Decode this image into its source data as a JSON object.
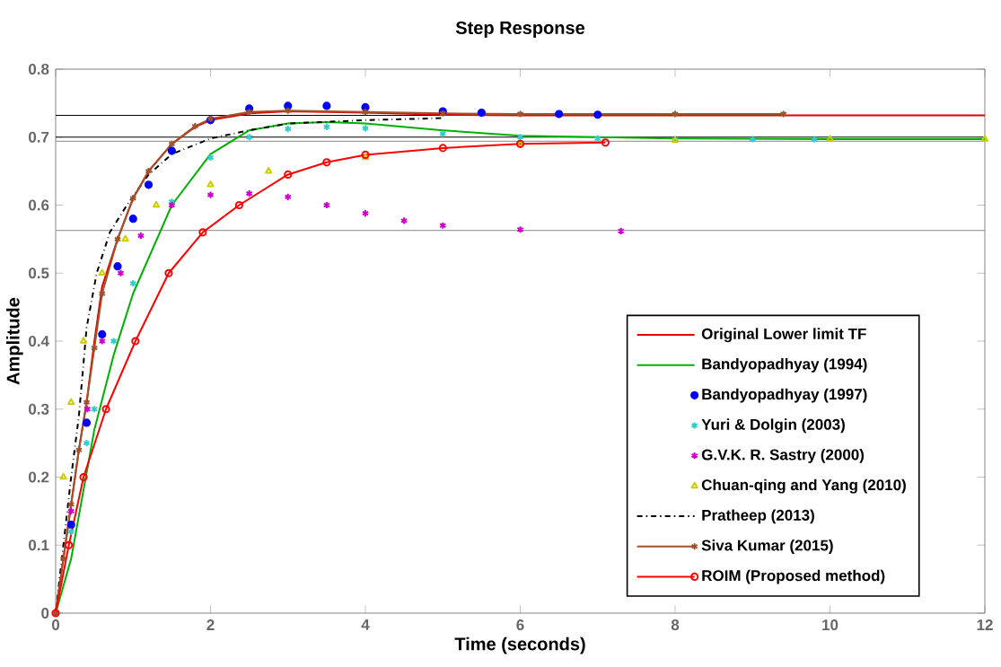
{
  "chart_data": {
    "type": "line",
    "title": "Step Response",
    "xlabel": "Time (seconds)",
    "ylabel": "Amplitude",
    "xlim": [
      0,
      12
    ],
    "xticks": [
      0,
      2,
      4,
      6,
      8,
      10,
      12
    ],
    "ylim": [
      0,
      0.8
    ],
    "yticks": [
      0,
      0.1,
      0.2,
      0.3,
      0.4,
      0.5,
      0.6,
      0.7,
      0.8
    ],
    "legend": "bottom right",
    "ref_lines": [
      {
        "axis": "y",
        "value": 0.732,
        "color": "#000000"
      },
      {
        "axis": "y",
        "value": 0.7,
        "color": "#000000"
      },
      {
        "axis": "y",
        "value": 0.694,
        "color": "#a0a0a0"
      },
      {
        "axis": "y",
        "value": 0.563,
        "color": "#a0a0a0"
      }
    ],
    "series": [
      {
        "name": "Original Lower limit TF",
        "color": "#e00000",
        "marker": "none",
        "line_style": "solid",
        "x": [
          0,
          0.1,
          0.2,
          0.3,
          0.4,
          0.5,
          0.6,
          0.8,
          1.0,
          1.2,
          1.5,
          1.8,
          2.0,
          2.5,
          3,
          4,
          5,
          6,
          8,
          10,
          12
        ],
        "values": [
          0,
          0.08,
          0.16,
          0.24,
          0.31,
          0.4,
          0.48,
          0.55,
          0.61,
          0.65,
          0.69,
          0.715,
          0.725,
          0.735,
          0.738,
          0.736,
          0.733,
          0.732,
          0.732,
          0.732,
          0.732
        ]
      },
      {
        "name": "Bandyopadhyay (1994)",
        "color": "#00b000",
        "marker": "none",
        "line_style": "solid",
        "x": [
          0,
          0.2,
          0.5,
          0.75,
          1.0,
          1.5,
          2.0,
          2.5,
          3,
          3.5,
          4,
          5,
          6,
          8,
          10,
          12
        ],
        "values": [
          0,
          0.08,
          0.27,
          0.38,
          0.47,
          0.6,
          0.675,
          0.71,
          0.72,
          0.722,
          0.72,
          0.71,
          0.702,
          0.698,
          0.697,
          0.697
        ]
      },
      {
        "name": "Bandyopadhyay (1997)",
        "type": "scatter",
        "color": "#0000ff",
        "marker": "circle",
        "x": [
          0.2,
          0.4,
          0.6,
          0.8,
          1.0,
          1.2,
          1.5,
          2.0,
          2.5,
          3,
          3.5,
          4,
          5,
          5.5,
          6.5,
          7
        ],
        "values": [
          0.13,
          0.28,
          0.41,
          0.51,
          0.58,
          0.63,
          0.68,
          0.725,
          0.742,
          0.746,
          0.746,
          0.744,
          0.738,
          0.736,
          0.734,
          0.733
        ]
      },
      {
        "name": "Yuri & Dolgin (2003)",
        "type": "scatter",
        "color": "#33cccc",
        "marker": "cross",
        "x": [
          0.2,
          0.4,
          0.5,
          0.75,
          1.0,
          1.5,
          2.0,
          2.5,
          3,
          3.5,
          4,
          5,
          6,
          7,
          8,
          9,
          9.8
        ],
        "values": [
          0.12,
          0.25,
          0.3,
          0.4,
          0.485,
          0.605,
          0.67,
          0.7,
          0.712,
          0.715,
          0.713,
          0.705,
          0.7,
          0.698,
          0.697,
          0.697,
          0.697
        ]
      },
      {
        "name": "G.V.K. R. Sastry (2000)",
        "type": "scatter",
        "color": "#cc00cc",
        "marker": "cross",
        "x": [
          0.2,
          0.41,
          0.6,
          0.84,
          1.1,
          1.5,
          2.0,
          2.5,
          3,
          3.5,
          4,
          4.5,
          5,
          6,
          7.3
        ],
        "values": [
          0.15,
          0.3,
          0.4,
          0.5,
          0.555,
          0.6,
          0.615,
          0.617,
          0.612,
          0.6,
          0.588,
          0.577,
          0.57,
          0.564,
          0.562
        ]
      },
      {
        "name": "Chuan-qing and Yang (2010)",
        "type": "scatter",
        "color": "#cccc00",
        "marker": "triangle",
        "x": [
          0.1,
          0.2,
          0.36,
          0.6,
          0.9,
          1.3,
          2,
          2.75,
          4,
          6,
          8,
          10,
          12
        ],
        "values": [
          0.2,
          0.31,
          0.4,
          0.5,
          0.55,
          0.6,
          0.63,
          0.65,
          0.67,
          0.69,
          0.695,
          0.697,
          0.697
        ]
      },
      {
        "name": "Pratheep (2013)",
        "color": "#000000",
        "marker": "none",
        "line_style": "dashdot",
        "x": [
          0,
          0.1,
          0.2,
          0.3,
          0.4,
          0.53,
          0.7,
          0.92,
          1.2,
          1.5,
          2,
          2.5,
          3,
          4,
          5
        ],
        "values": [
          0,
          0.1,
          0.2,
          0.29,
          0.42,
          0.5,
          0.56,
          0.6,
          0.645,
          0.675,
          0.698,
          0.71,
          0.72,
          0.725,
          0.728
        ]
      },
      {
        "name": "Siva Kumar (2015)",
        "color": "#a0522d",
        "marker": "cross",
        "line_style": "solid",
        "x": [
          0,
          0.1,
          0.2,
          0.3,
          0.4,
          0.5,
          0.6,
          0.8,
          1.0,
          1.2,
          1.5,
          1.8,
          2.0,
          2.5,
          3,
          4,
          5,
          6,
          8,
          9.4
        ],
        "values": [
          0,
          0.08,
          0.16,
          0.24,
          0.31,
          0.39,
          0.47,
          0.55,
          0.61,
          0.65,
          0.69,
          0.716,
          0.727,
          0.737,
          0.739,
          0.737,
          0.735,
          0.734,
          0.734,
          0.734
        ]
      },
      {
        "name": "ROIM (Proposed method)",
        "color": "#ff0000",
        "marker": "circle",
        "line_style": "solid",
        "x": [
          0,
          0.17,
          0.36,
          0.65,
          1.03,
          1.46,
          1.9,
          2.37,
          3,
          3.5,
          4,
          5,
          6,
          7.1
        ],
        "values": [
          0,
          0.1,
          0.2,
          0.3,
          0.4,
          0.5,
          0.56,
          0.6,
          0.645,
          0.663,
          0.674,
          0.684,
          0.69,
          0.692
        ]
      }
    ]
  }
}
